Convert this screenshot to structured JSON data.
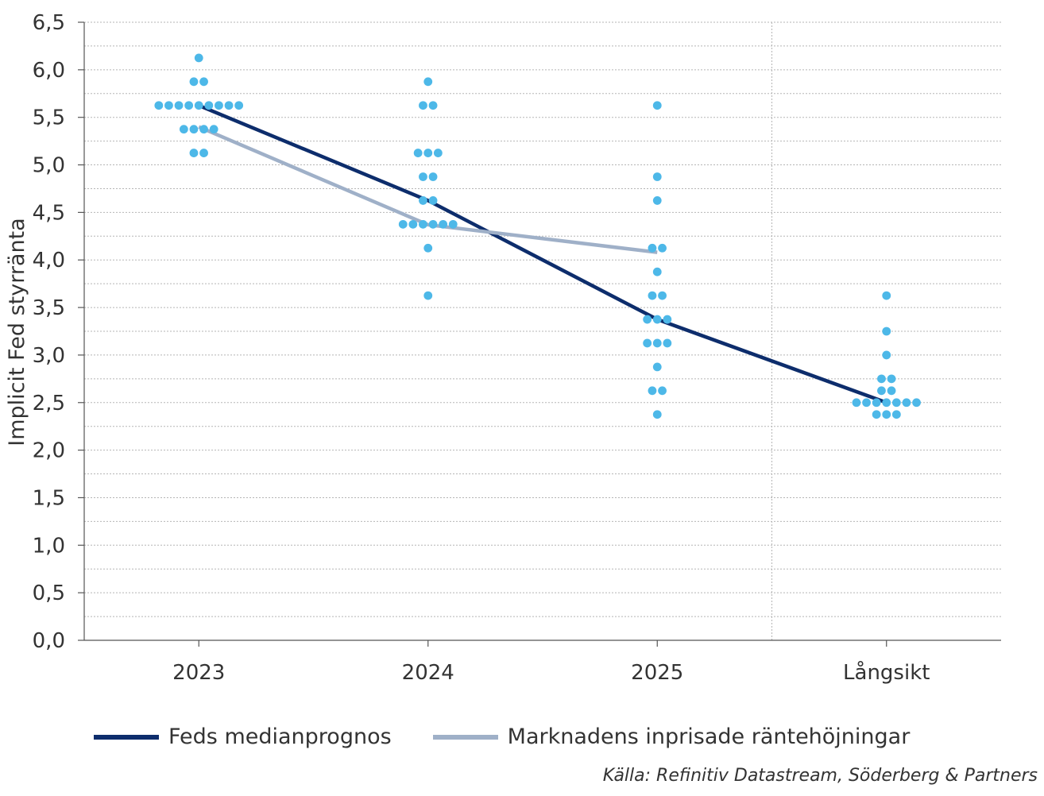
{
  "chart_data": {
    "type": "scatter",
    "ylabel": "Implicit Fed styrränta",
    "xlabel": "",
    "categories": [
      "2023",
      "2024",
      "2025",
      "Långsikt"
    ],
    "ylim": [
      0,
      6.5
    ],
    "y_ticks": [
      "0,0",
      "0,5",
      "1,0",
      "1,5",
      "2,0",
      "2,5",
      "3,0",
      "3,5",
      "4,0",
      "4,5",
      "5,0",
      "5,5",
      "6,0",
      "6,5"
    ],
    "grid": true,
    "legend_position": "bottom",
    "dots": [
      {
        "category": "2023",
        "values": [
          5.125,
          5.125,
          5.375,
          5.375,
          5.375,
          5.375,
          5.625,
          5.625,
          5.625,
          5.625,
          5.625,
          5.625,
          5.625,
          5.625,
          5.625,
          5.875,
          5.875,
          6.125
        ]
      },
      {
        "category": "2024",
        "values": [
          3.625,
          4.125,
          4.375,
          4.375,
          4.375,
          4.375,
          4.375,
          4.375,
          4.625,
          4.625,
          4.875,
          4.875,
          5.125,
          5.125,
          5.125,
          5.625,
          5.625,
          5.875
        ]
      },
      {
        "category": "2025",
        "values": [
          2.375,
          2.625,
          2.625,
          2.875,
          3.125,
          3.125,
          3.125,
          3.375,
          3.375,
          3.375,
          3.625,
          3.625,
          3.875,
          4.125,
          4.125,
          4.625,
          4.875,
          5.625
        ]
      },
      {
        "category": "Långsikt",
        "values": [
          2.375,
          2.375,
          2.375,
          2.5,
          2.5,
          2.5,
          2.5,
          2.5,
          2.5,
          2.5,
          2.625,
          2.625,
          2.75,
          2.75,
          3.0,
          3.25,
          3.625
        ]
      }
    ],
    "series": [
      {
        "name": "Feds medianprognos",
        "color": "#0d2d6c",
        "categories": [
          "2023",
          "2024",
          "2025",
          "Långsikt"
        ],
        "values": [
          5.625,
          4.625,
          3.375,
          2.5
        ]
      },
      {
        "name": "Marknadens inprisade räntehöjningar",
        "color": "#9fb0c8",
        "categories": [
          "2023",
          "2024",
          "2025"
        ],
        "values": [
          5.4,
          4.37,
          4.08
        ]
      }
    ],
    "dot_color": "#4db8e8",
    "source": "Källa: Refinitiv Datastream, Söderberg & Partners"
  }
}
